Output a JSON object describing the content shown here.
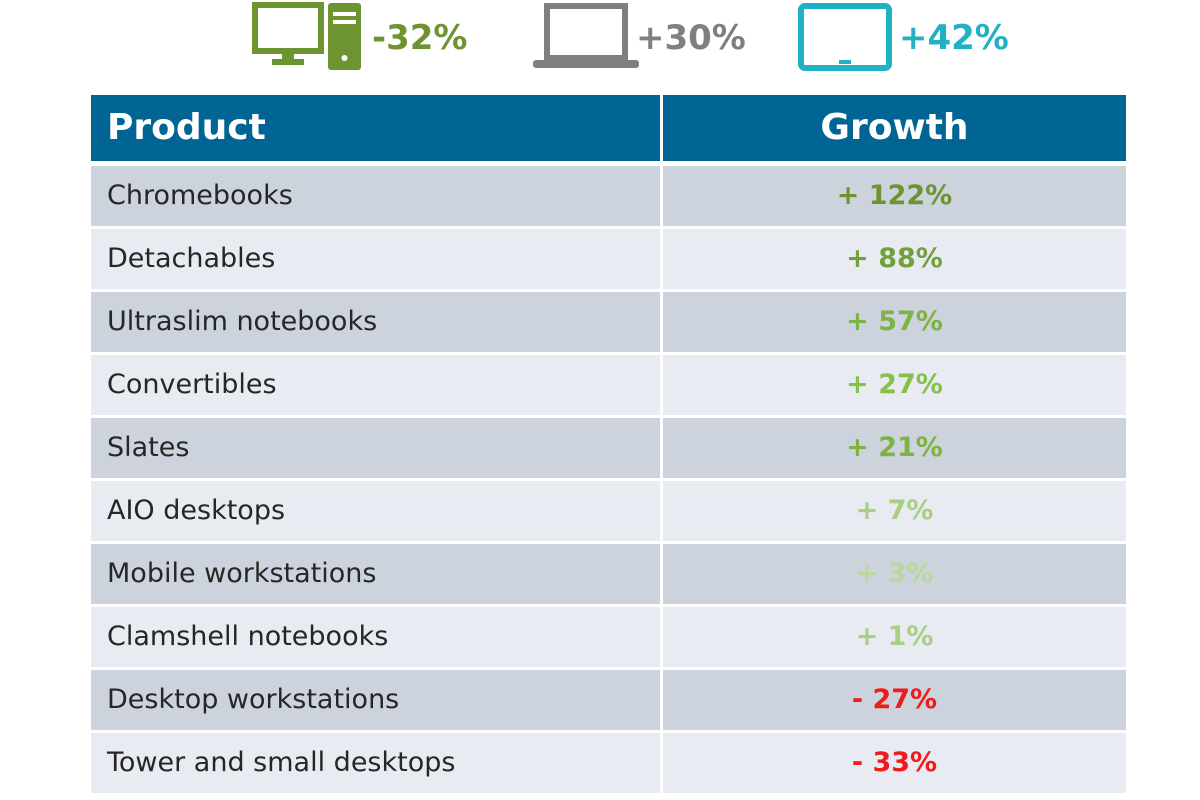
{
  "summary": [
    {
      "icon": "desktop-computer-icon",
      "value": "-32%",
      "color": "#6e9432"
    },
    {
      "icon": "laptop-icon",
      "value": "+30%",
      "color": "#7f7f7f"
    },
    {
      "icon": "tablet-icon",
      "value": "+42%",
      "color": "#22b0c4"
    }
  ],
  "chart_data": {
    "type": "table",
    "columns": [
      "Product",
      "Growth"
    ],
    "rows": [
      {
        "product": "Chromebooks",
        "growth": "+ 122%",
        "value": 122,
        "color": "#6e9432"
      },
      {
        "product": "Detachables",
        "growth": "+ 88%",
        "value": 88,
        "color": "#72a03c"
      },
      {
        "product": "Ultraslim notebooks",
        "growth": "+ 57%",
        "value": 57,
        "color": "#7cb342"
      },
      {
        "product": "Convertibles",
        "growth": "+ 27%",
        "value": 27,
        "color": "#86c04a"
      },
      {
        "product": "Slates",
        "growth": "+ 21%",
        "value": 21,
        "color": "#7cb342"
      },
      {
        "product": "AIO desktops",
        "growth": "+ 7%",
        "value": 7,
        "color": "#a8cf82"
      },
      {
        "product": "Mobile workstations",
        "growth": "+ 3%",
        "value": 3,
        "color": "#b8d99a"
      },
      {
        "product": "Clamshell notebooks",
        "growth": "+ 1%",
        "value": 1,
        "color": "#a8cf82"
      },
      {
        "product": "Desktop workstations",
        "growth": "- 27%",
        "value": -27,
        "color": "#ee1c1c"
      },
      {
        "product": "Tower and small desktops",
        "growth": "- 33%",
        "value": -33,
        "color": "#ee1c1c"
      }
    ]
  }
}
